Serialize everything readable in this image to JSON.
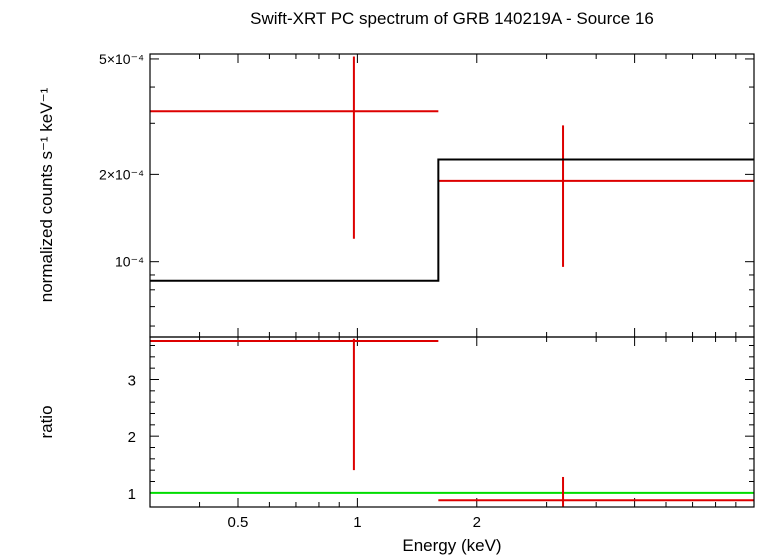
{
  "chart_data": [
    {
      "panel": "spectrum",
      "type": "scatter",
      "title": "Swift-XRT PC spectrum of GRB 140219A - Source 16",
      "ylabel": "normalized counts s⁻¹ keV⁻¹",
      "xscale": "log",
      "yscale": "log",
      "xlim": [
        0.3,
        10
      ],
      "ylim": [
        5.5e-05,
        0.00052
      ],
      "ytick_labels": [
        {
          "value": 0.0005,
          "label": "5×10⁻⁴"
        },
        {
          "value": 0.0002,
          "label": "2×10⁻⁴"
        },
        {
          "value": 0.0001,
          "label": "10⁻⁴"
        }
      ],
      "series": [
        {
          "color": "#dd0000",
          "style": "errorbar",
          "points": [
            {
              "xlo": 0.3,
              "x": 0.98,
              "xhi": 1.6,
              "y": 0.00033,
              "ylo": 0.00012,
              "yhi": 0.00051
            },
            {
              "xlo": 1.6,
              "x": 3.3,
              "xhi": 10,
              "y": 0.00019,
              "ylo": 9.6e-05,
              "yhi": 0.000295
            }
          ]
        },
        {
          "color": "#000000",
          "style": "step",
          "bins": [
            {
              "xlo": 0.3,
              "xhi": 1.6,
              "y": 8.6e-05
            },
            {
              "xlo": 1.6,
              "xhi": 10,
              "y": 0.000225
            }
          ]
        }
      ]
    },
    {
      "panel": "ratio",
      "type": "scatter",
      "xlabel": "Energy (keV)",
      "ylabel": "ratio",
      "xscale": "log",
      "xlim": [
        0.3,
        10
      ],
      "ylim": [
        0.75,
        3.75
      ],
      "yticks": [
        1,
        2,
        3
      ],
      "xtick_labels": [
        {
          "value": 0.5,
          "label": "0.5"
        },
        {
          "value": 1,
          "label": "1"
        },
        {
          "value": 2,
          "label": "2"
        }
      ],
      "reference_line": {
        "y": 1,
        "color": "#00dd00"
      },
      "series": [
        {
          "color": "#dd0000",
          "style": "errorbar",
          "points": [
            {
              "xlo": 0.3,
              "x": 0.98,
              "xhi": 1.6,
              "y": 3.68,
              "ylo": 1.4,
              "yhi": 3.72
            },
            {
              "xlo": 1.6,
              "x": 3.3,
              "xhi": 10,
              "y": 0.87,
              "ylo": 0.76,
              "yhi": 1.28
            }
          ]
        }
      ]
    }
  ]
}
